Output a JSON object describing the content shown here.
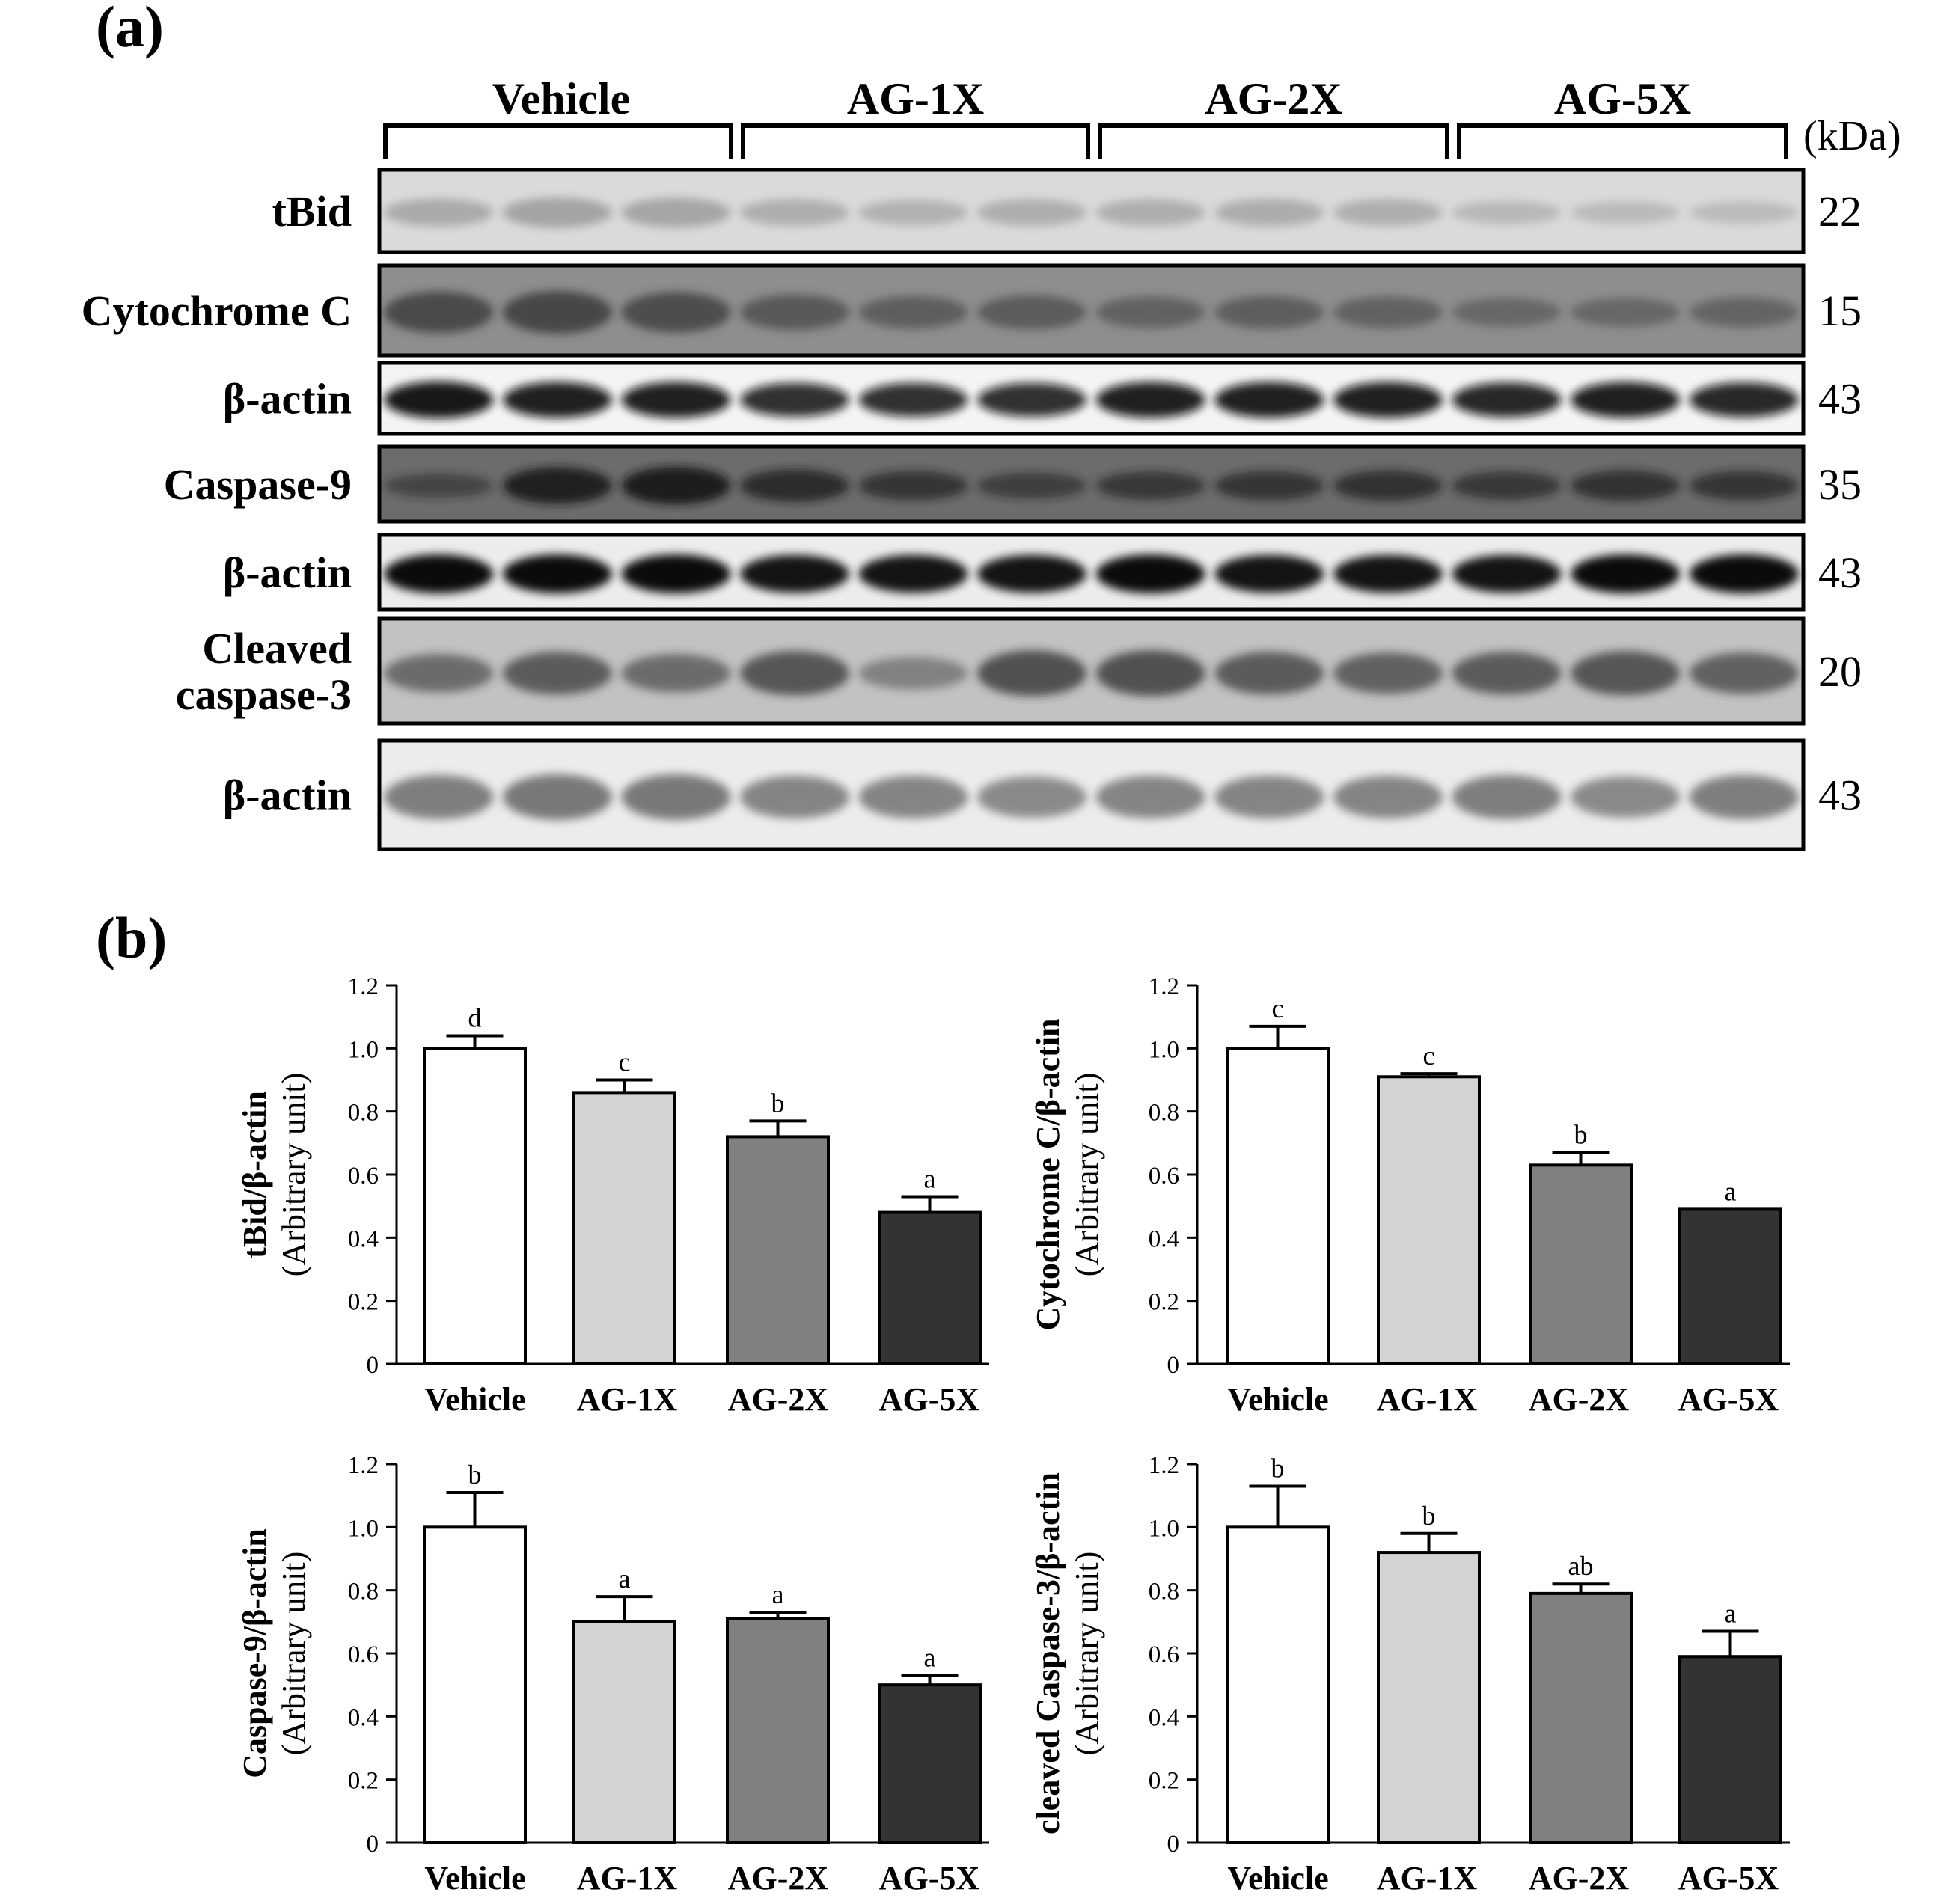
{
  "panel_a": {
    "label": "(a)",
    "groups": [
      "Vehicle",
      "AG-1X",
      "AG-2X",
      "AG-5X"
    ],
    "unit_label": "(kDa)",
    "blots": [
      {
        "label_lines": [
          "tBid"
        ],
        "mw": "22",
        "bg": "#dadada",
        "bands": [
          0.35,
          0.45,
          0.42,
          0.3,
          0.25,
          0.3,
          0.3,
          0.32,
          0.3,
          0.15,
          0.12,
          0.1
        ],
        "band_color": "#7a7a7a"
      },
      {
        "label_lines": [
          "Cytochrome C"
        ],
        "mw": "15",
        "bg": "#8e8e8e",
        "bands": [
          0.8,
          0.85,
          0.75,
          0.55,
          0.45,
          0.5,
          0.4,
          0.45,
          0.4,
          0.3,
          0.3,
          0.35
        ],
        "band_color": "#3a3a3a"
      },
      {
        "label_lines": [
          "β-actin"
        ],
        "mw": "43",
        "bg": "#f4f4f4",
        "bands": [
          1.0,
          0.95,
          0.95,
          0.85,
          0.85,
          0.85,
          0.95,
          0.95,
          0.95,
          0.9,
          0.95,
          0.9
        ],
        "band_color": "#0d0d0d"
      },
      {
        "label_lines": [
          "Caspase-9"
        ],
        "mw": "35",
        "bg": "#6c6c6c",
        "bands": [
          0.3,
          0.9,
          0.95,
          0.7,
          0.55,
          0.4,
          0.5,
          0.55,
          0.6,
          0.5,
          0.6,
          0.55
        ],
        "band_color": "#141414"
      },
      {
        "label_lines": [
          "β-actin"
        ],
        "mw": "43",
        "bg": "#ececec",
        "bands": [
          1.0,
          1.0,
          1.0,
          0.95,
          0.95,
          0.95,
          1.0,
          0.95,
          0.95,
          0.95,
          1.0,
          1.0
        ],
        "band_color": "#050505"
      },
      {
        "label_lines": [
          "Cleaved",
          "caspase-3"
        ],
        "mw": "20",
        "bg": "#c2c2c2",
        "bands": [
          0.45,
          0.6,
          0.45,
          0.65,
          0.25,
          0.7,
          0.7,
          0.6,
          0.55,
          0.6,
          0.65,
          0.55
        ],
        "band_color": "#2a2a2a"
      },
      {
        "label_lines": [
          "β-actin"
        ],
        "mw": "43",
        "bg": "#ececec",
        "bands": [
          0.6,
          0.65,
          0.65,
          0.55,
          0.55,
          0.5,
          0.55,
          0.55,
          0.55,
          0.6,
          0.5,
          0.6
        ],
        "band_color": "#4a4a4a"
      }
    ]
  },
  "panel_b": {
    "label": "(b)"
  },
  "colors": {
    "vehicle": "#ffffff",
    "ag1x": "#d3d3d3",
    "ag2x": "#808080",
    "ag5x": "#333333"
  },
  "chart_data": [
    {
      "type": "bar",
      "categories": [
        "Vehicle",
        "AG-1X",
        "AG-2X",
        "AG-5X"
      ],
      "values": [
        1.0,
        0.86,
        0.72,
        0.48
      ],
      "errors": [
        0.04,
        0.04,
        0.05,
        0.05
      ],
      "significance": [
        "d",
        "c",
        "b",
        "a"
      ],
      "ylabel": [
        "tBid/β-actin",
        "(Arbitrary unit)"
      ],
      "ylim": [
        0,
        1.2
      ],
      "yticks": [
        "0",
        "0.2",
        "0.4",
        "0.6",
        "0.8",
        "1.0",
        "1.2"
      ]
    },
    {
      "type": "bar",
      "categories": [
        "Vehicle",
        "AG-1X",
        "AG-2X",
        "AG-5X"
      ],
      "values": [
        1.0,
        0.91,
        0.63,
        0.49
      ],
      "errors": [
        0.07,
        0.01,
        0.04,
        0.0
      ],
      "significance": [
        "c",
        "c",
        "b",
        "a"
      ],
      "ylabel": [
        "Cytochrome C/β-actin",
        "(Arbitrary unit)"
      ],
      "ylim": [
        0,
        1.2
      ],
      "yticks": [
        "0",
        "0.2",
        "0.4",
        "0.6",
        "0.8",
        "1.0",
        "1.2"
      ]
    },
    {
      "type": "bar",
      "categories": [
        "Vehicle",
        "AG-1X",
        "AG-2X",
        "AG-5X"
      ],
      "values": [
        1.0,
        0.7,
        0.71,
        0.5
      ],
      "errors": [
        0.11,
        0.08,
        0.02,
        0.03
      ],
      "significance": [
        "b",
        "a",
        "a",
        "a"
      ],
      "ylabel": [
        "Caspase-9/β-actin",
        "(Arbitrary unit)"
      ],
      "ylim": [
        0,
        1.2
      ],
      "yticks": [
        "0",
        "0.2",
        "0.4",
        "0.6",
        "0.8",
        "1.0",
        "1.2"
      ]
    },
    {
      "type": "bar",
      "categories": [
        "Vehicle",
        "AG-1X",
        "AG-2X",
        "AG-5X"
      ],
      "values": [
        1.0,
        0.92,
        0.79,
        0.59
      ],
      "errors": [
        0.13,
        0.06,
        0.03,
        0.08
      ],
      "significance": [
        "b",
        "b",
        "ab",
        "a"
      ],
      "ylabel": [
        "cleaved Caspase-3/β-actin",
        "(Arbitrary unit)"
      ],
      "ylim": [
        0,
        1.2
      ],
      "yticks": [
        "0",
        "0.2",
        "0.4",
        "0.6",
        "0.8",
        "1.0",
        "1.2"
      ]
    }
  ]
}
